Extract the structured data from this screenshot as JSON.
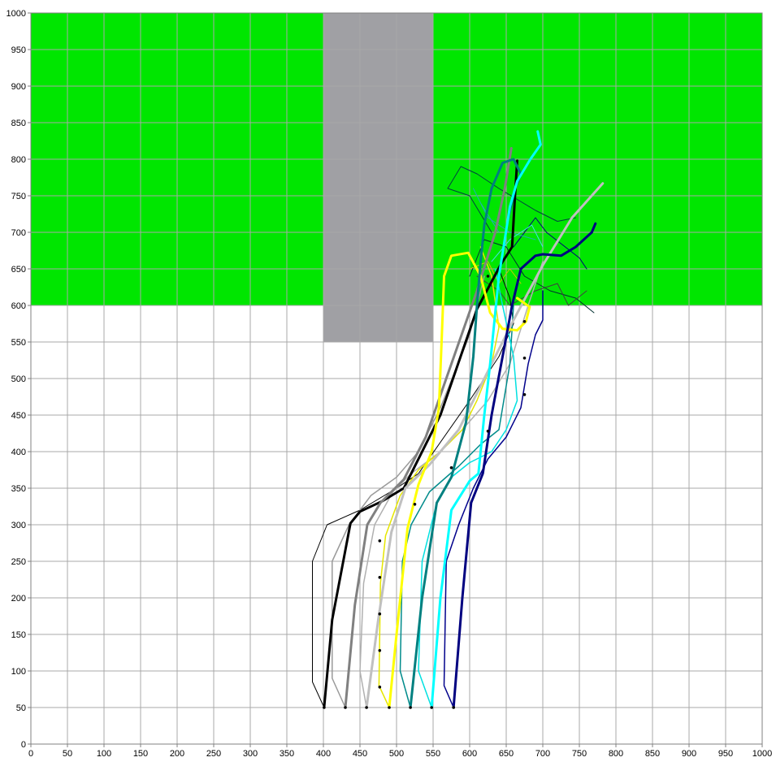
{
  "chart_data": {
    "type": "line",
    "title": "",
    "xlabel": "",
    "ylabel": "",
    "xlim": [
      0,
      1000
    ],
    "ylim": [
      0,
      1000
    ],
    "x_tick_step": 50,
    "y_tick_step": 50,
    "x_ticks": [
      "0",
      "50",
      "100",
      "150",
      "200",
      "250",
      "300",
      "350",
      "400",
      "450",
      "500",
      "550",
      "600",
      "650",
      "700",
      "750",
      "800",
      "850",
      "900",
      "950",
      "1000"
    ],
    "y_ticks": [
      "0",
      "50",
      "100",
      "150",
      "200",
      "250",
      "300",
      "350",
      "400",
      "450",
      "500",
      "550",
      "600",
      "650",
      "700",
      "750",
      "800",
      "850",
      "900",
      "950",
      "1000"
    ],
    "grid": true,
    "legend": "none",
    "regions": [
      {
        "kind": "rect",
        "x0": 0,
        "x1": 1000,
        "y0": 600,
        "y1": 1000,
        "color": "#00e600"
      },
      {
        "kind": "rect",
        "x0": 400,
        "x1": 550,
        "y0": 550,
        "y1": 1000,
        "color": "#a0a0a4"
      }
    ],
    "series": [
      {
        "color": "#000000",
        "width": 3,
        "points": [
          [
            401,
            50
          ],
          [
            412,
            170
          ],
          [
            437,
            302
          ],
          [
            450,
            318
          ],
          [
            480,
            332
          ],
          [
            510,
            350
          ],
          [
            560,
            450
          ],
          [
            610,
            595
          ],
          [
            642,
            655
          ],
          [
            658,
            680
          ],
          [
            662,
            750
          ],
          [
            665,
            798
          ]
        ]
      },
      {
        "color": "#000000",
        "width": 1,
        "points": [
          [
            401,
            50
          ],
          [
            385,
            85
          ],
          [
            385,
            250
          ],
          [
            405,
            300
          ],
          [
            450,
            320
          ],
          [
            500,
            350
          ],
          [
            530,
            370
          ],
          [
            600,
            470
          ],
          [
            640,
            530
          ],
          [
            660,
            575
          ],
          [
            655,
            610
          ],
          [
            640,
            650
          ]
        ]
      },
      {
        "color": "#808080",
        "width": 3,
        "points": [
          [
            430,
            50
          ],
          [
            443,
            190
          ],
          [
            460,
            300
          ],
          [
            478,
            330
          ],
          [
            510,
            362
          ],
          [
            540,
            420
          ],
          [
            575,
            520
          ],
          [
            610,
            620
          ],
          [
            635,
            700
          ],
          [
            648,
            760
          ],
          [
            657,
            815
          ]
        ]
      },
      {
        "color": "#9a9a9a",
        "width": 1.5,
        "points": [
          [
            430,
            50
          ],
          [
            412,
            90
          ],
          [
            412,
            250
          ],
          [
            435,
            300
          ],
          [
            465,
            340
          ],
          [
            500,
            365
          ],
          [
            530,
            400
          ],
          [
            560,
            460
          ],
          [
            600,
            560
          ],
          [
            620,
            640
          ]
        ]
      },
      {
        "color": "#c0c0c0",
        "width": 3,
        "points": [
          [
            459,
            50
          ],
          [
            475,
            170
          ],
          [
            493,
            290
          ],
          [
            512,
            350
          ],
          [
            545,
            382
          ],
          [
            585,
            430
          ],
          [
            620,
            500
          ],
          [
            660,
            580
          ],
          [
            700,
            655
          ],
          [
            740,
            720
          ],
          [
            782,
            767
          ]
        ]
      },
      {
        "color": "#b0b0b0",
        "width": 1.5,
        "points": [
          [
            459,
            50
          ],
          [
            450,
            100
          ],
          [
            455,
            220
          ],
          [
            470,
            300
          ],
          [
            495,
            345
          ],
          [
            520,
            370
          ],
          [
            560,
            400
          ],
          [
            590,
            430
          ],
          [
            625,
            470
          ],
          [
            655,
            520
          ],
          [
            680,
            600
          ],
          [
            700,
            660
          ]
        ]
      },
      {
        "color": "#ffff00",
        "width": 3,
        "points": [
          [
            490,
            50
          ],
          [
            500,
            150
          ],
          [
            515,
            295
          ],
          [
            530,
            355
          ],
          [
            548,
            400
          ],
          [
            558,
            460
          ],
          [
            562,
            560
          ],
          [
            565,
            640
          ],
          [
            575,
            668
          ],
          [
            598,
            672
          ],
          [
            615,
            640
          ],
          [
            628,
            590
          ],
          [
            645,
            568
          ],
          [
            665,
            566
          ],
          [
            677,
            578
          ],
          [
            682,
            598
          ],
          [
            665,
            610
          ]
        ]
      },
      {
        "color": "#e6e600",
        "width": 1.5,
        "points": [
          [
            490,
            50
          ],
          [
            476,
            80
          ],
          [
            478,
            220
          ],
          [
            485,
            285
          ],
          [
            505,
            340
          ],
          [
            530,
            375
          ],
          [
            560,
            400
          ],
          [
            590,
            430
          ],
          [
            610,
            470
          ],
          [
            630,
            520
          ],
          [
            640,
            570
          ],
          [
            630,
            640
          ],
          [
            615,
            680
          ]
        ]
      },
      {
        "color": "#008080",
        "width": 3,
        "points": [
          [
            519,
            50
          ],
          [
            535,
            200
          ],
          [
            555,
            330
          ],
          [
            575,
            365
          ],
          [
            595,
            440
          ],
          [
            605,
            530
          ],
          [
            610,
            600
          ],
          [
            615,
            660
          ],
          [
            620,
            710
          ],
          [
            630,
            760
          ],
          [
            645,
            795
          ],
          [
            660,
            800
          ],
          [
            670,
            780
          ],
          [
            662,
            760
          ],
          [
            653,
            720
          ]
        ]
      },
      {
        "color": "#008b8b",
        "width": 1.5,
        "points": [
          [
            519,
            50
          ],
          [
            505,
            100
          ],
          [
            508,
            250
          ],
          [
            520,
            300
          ],
          [
            545,
            345
          ],
          [
            585,
            380
          ],
          [
            615,
            410
          ],
          [
            640,
            430
          ],
          [
            655,
            520
          ],
          [
            660,
            600
          ]
        ]
      },
      {
        "color": "#00ffff",
        "width": 3,
        "points": [
          [
            548,
            50
          ],
          [
            560,
            200
          ],
          [
            575,
            320
          ],
          [
            600,
            360
          ],
          [
            612,
            370
          ],
          [
            620,
            450
          ],
          [
            628,
            520
          ],
          [
            640,
            640
          ],
          [
            648,
            690
          ],
          [
            655,
            735
          ],
          [
            665,
            770
          ],
          [
            683,
            800
          ],
          [
            697,
            820
          ],
          [
            693,
            838
          ]
        ]
      },
      {
        "color": "#00e0e0",
        "width": 1.5,
        "points": [
          [
            548,
            50
          ],
          [
            530,
            100
          ],
          [
            535,
            250
          ],
          [
            555,
            330
          ],
          [
            575,
            365
          ],
          [
            600,
            385
          ],
          [
            630,
            400
          ],
          [
            650,
            430
          ],
          [
            665,
            470
          ],
          [
            660,
            530
          ],
          [
            645,
            600
          ],
          [
            635,
            650
          ]
        ]
      },
      {
        "color": "#000080",
        "width": 3,
        "points": [
          [
            578,
            50
          ],
          [
            590,
            200
          ],
          [
            602,
            330
          ],
          [
            618,
            370
          ],
          [
            630,
            450
          ],
          [
            645,
            530
          ],
          [
            658,
            600
          ],
          [
            670,
            650
          ],
          [
            690,
            668
          ],
          [
            700,
            670
          ],
          [
            725,
            668
          ],
          [
            745,
            680
          ],
          [
            767,
            700
          ],
          [
            772,
            712
          ]
        ]
      },
      {
        "color": "#00008b",
        "width": 1.5,
        "points": [
          [
            578,
            50
          ],
          [
            565,
            80
          ],
          [
            568,
            250
          ],
          [
            585,
            300
          ],
          [
            605,
            350
          ],
          [
            625,
            390
          ],
          [
            650,
            420
          ],
          [
            670,
            460
          ],
          [
            680,
            520
          ],
          [
            690,
            560
          ],
          [
            700,
            580
          ],
          [
            700,
            620
          ]
        ]
      }
    ],
    "branches": [
      {
        "color": "#004040",
        "points": [
          [
            630,
            700
          ],
          [
            600,
            750
          ],
          [
            570,
            760
          ],
          [
            588,
            790
          ],
          [
            610,
            780
          ],
          [
            640,
            760
          ],
          [
            665,
            745
          ],
          [
            690,
            730
          ],
          [
            720,
            715
          ],
          [
            745,
            720
          ]
        ]
      },
      {
        "color": "#003030",
        "points": [
          [
            600,
            640
          ],
          [
            620,
            690
          ],
          [
            650,
            680
          ],
          [
            675,
            640
          ],
          [
            710,
            620
          ],
          [
            745,
            610
          ],
          [
            770,
            590
          ]
        ]
      },
      {
        "color": "#00007a",
        "points": [
          [
            660,
            680
          ],
          [
            690,
            720
          ],
          [
            705,
            700
          ],
          [
            750,
            665
          ],
          [
            760,
            650
          ]
        ]
      },
      {
        "color": "#20b0b0",
        "points": [
          [
            640,
            700
          ],
          [
            615,
            740
          ],
          [
            605,
            760
          ],
          [
            625,
            720
          ],
          [
            655,
            700
          ],
          [
            690,
            690
          ]
        ]
      },
      {
        "color": "#40e0e0",
        "points": [
          [
            630,
            660
          ],
          [
            655,
            690
          ],
          [
            685,
            710
          ],
          [
            700,
            680
          ]
        ]
      },
      {
        "color": "#c8c800",
        "points": [
          [
            600,
            650
          ],
          [
            625,
            660
          ],
          [
            640,
            630
          ],
          [
            655,
            650
          ],
          [
            670,
            630
          ]
        ]
      },
      {
        "color": "#404040",
        "points": [
          [
            610,
            640
          ],
          [
            640,
            620
          ],
          [
            655,
            600
          ],
          [
            690,
            620
          ],
          [
            720,
            630
          ],
          [
            735,
            600
          ],
          [
            760,
            620
          ]
        ]
      }
    ],
    "markers": [
      {
        "x": 401,
        "y": 50
      },
      {
        "x": 430,
        "y": 50
      },
      {
        "x": 459,
        "y": 50
      },
      {
        "x": 490,
        "y": 50
      },
      {
        "x": 519,
        "y": 50
      },
      {
        "x": 548,
        "y": 50
      },
      {
        "x": 578,
        "y": 50
      },
      {
        "x": 477,
        "y": 78
      },
      {
        "x": 477,
        "y": 128
      },
      {
        "x": 477,
        "y": 178
      },
      {
        "x": 477,
        "y": 228
      },
      {
        "x": 477,
        "y": 278
      },
      {
        "x": 525,
        "y": 328
      },
      {
        "x": 575,
        "y": 378
      },
      {
        "x": 625,
        "y": 428
      },
      {
        "x": 675,
        "y": 478
      },
      {
        "x": 675,
        "y": 528
      },
      {
        "x": 675,
        "y": 578
      },
      {
        "x": 625,
        "y": 640
      }
    ]
  }
}
